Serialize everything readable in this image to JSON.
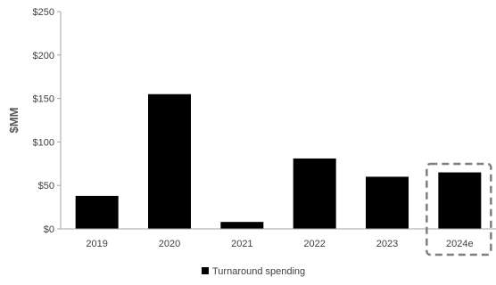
{
  "chart_data": {
    "type": "bar",
    "title": "",
    "xlabel": "",
    "ylabel": "$MM",
    "categories": [
      "2019",
      "2020",
      "2021",
      "2022",
      "2023",
      "2024e"
    ],
    "series": [
      {
        "name": "Turnaround spending",
        "values": [
          38,
          155,
          8,
          81,
          60,
          65
        ]
      }
    ],
    "ylim": [
      0,
      250
    ],
    "yticks": [
      0,
      50,
      100,
      150,
      200,
      250
    ],
    "ytick_labels": [
      "$0",
      "$50",
      "$100",
      "$150",
      "$200",
      "$250"
    ],
    "grid": false,
    "legend": "bottom",
    "highlighted_category": "2024e",
    "colors": {
      "bar": "#000000",
      "axis": "#a6a6a6",
      "highlight_box": "#7f7f7f"
    }
  }
}
